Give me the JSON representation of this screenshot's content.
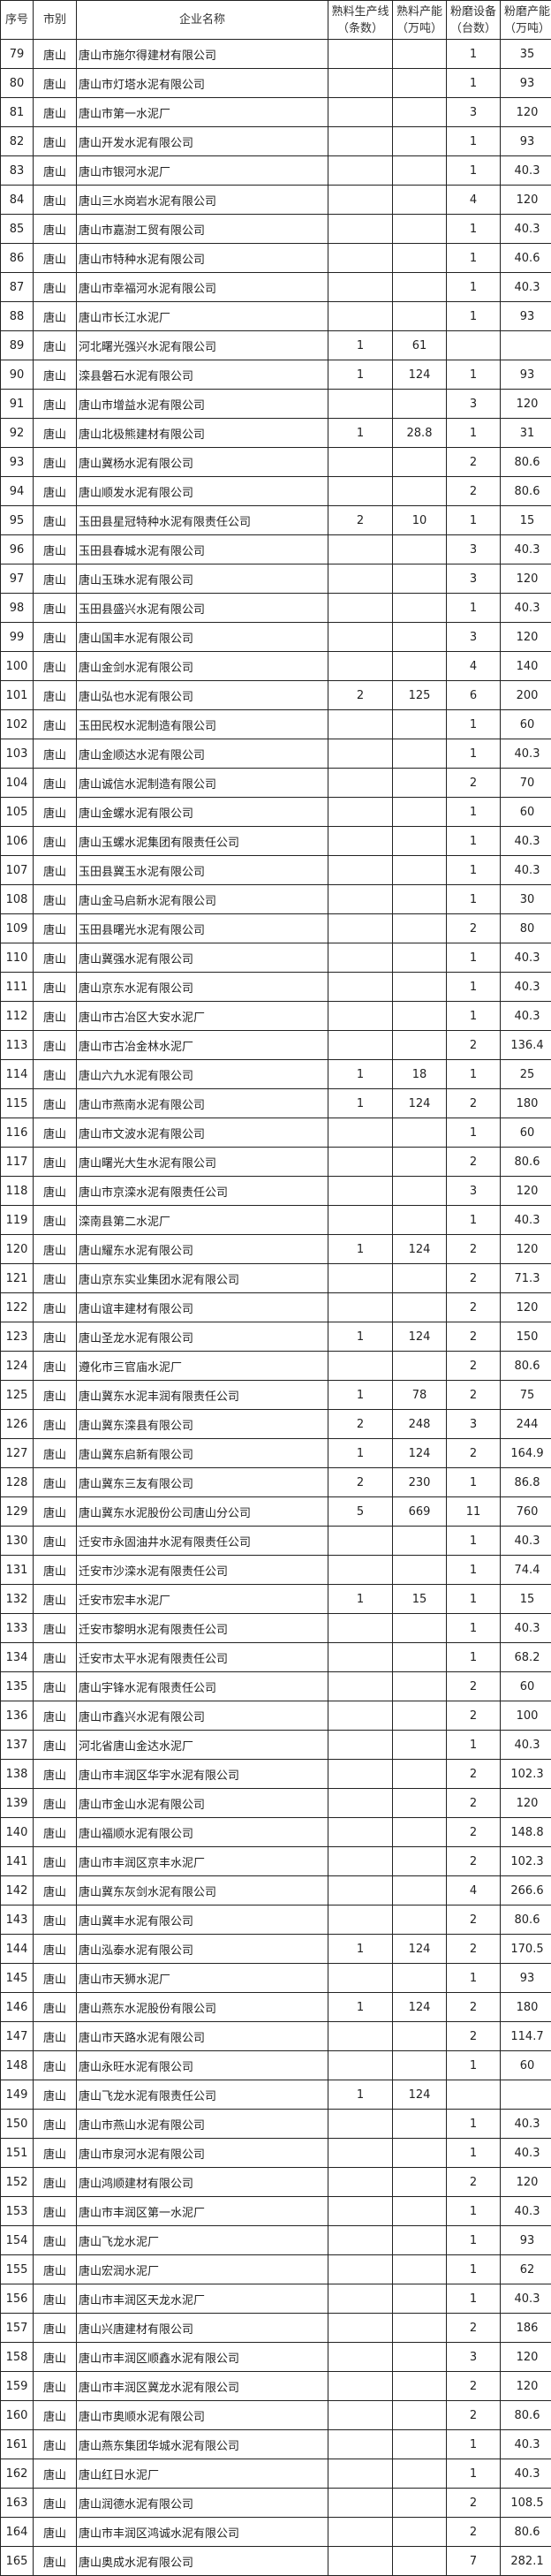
{
  "headers": {
    "no": "序号",
    "city": "市别",
    "company": "企业名称",
    "clinker_lines": [
      "熟料生产线",
      "（条数）"
    ],
    "clinker_capacity": [
      "熟料产能",
      "（万吨）"
    ],
    "mill_units": [
      "粉磨设备",
      "（台数）"
    ],
    "mill_capacity": [
      "粉磨产能",
      "（万吨）"
    ]
  },
  "rows": [
    [
      "79",
      "唐山",
      "唐山市施尔得建材有限公司",
      "",
      "",
      "1",
      "35"
    ],
    [
      "80",
      "唐山",
      "唐山市灯塔水泥有限公司",
      "",
      "",
      "1",
      "93"
    ],
    [
      "81",
      "唐山",
      "唐山市第一水泥厂",
      "",
      "",
      "3",
      "120"
    ],
    [
      "82",
      "唐山",
      "唐山开发水泥有限公司",
      "",
      "",
      "1",
      "93"
    ],
    [
      "83",
      "唐山",
      "唐山市银河水泥厂",
      "",
      "",
      "1",
      "40.3"
    ],
    [
      "84",
      "唐山",
      "唐山三水岗岩水泥有限公司",
      "",
      "",
      "4",
      "120"
    ],
    [
      "85",
      "唐山",
      "唐山市嘉澍工贸有限公司",
      "",
      "",
      "1",
      "40.3"
    ],
    [
      "86",
      "唐山",
      "唐山市特种水泥有限公司",
      "",
      "",
      "1",
      "40.6"
    ],
    [
      "87",
      "唐山",
      "唐山市幸福河水泥有限公司",
      "",
      "",
      "1",
      "40.3"
    ],
    [
      "88",
      "唐山",
      "唐山市长江水泥厂",
      "",
      "",
      "1",
      "93"
    ],
    [
      "89",
      "唐山",
      "河北曙光强兴水泥有限公司",
      "1",
      "61",
      "",
      ""
    ],
    [
      "90",
      "唐山",
      "滦县磐石水泥有限公司",
      "1",
      "124",
      "1",
      "93"
    ],
    [
      "91",
      "唐山",
      "唐山市增益水泥有限公司",
      "",
      "",
      "3",
      "120"
    ],
    [
      "92",
      "唐山",
      "唐山北极熊建材有限公司",
      "1",
      "28.8",
      "1",
      "31"
    ],
    [
      "93",
      "唐山",
      "唐山冀杨水泥有限公司",
      "",
      "",
      "2",
      "80.6"
    ],
    [
      "94",
      "唐山",
      "唐山顺发水泥有限公司",
      "",
      "",
      "2",
      "80.6"
    ],
    [
      "95",
      "唐山",
      "玉田县星冠特种水泥有限责任公司",
      "2",
      "10",
      "1",
      "15"
    ],
    [
      "96",
      "唐山",
      "玉田县春城水泥有限公司",
      "",
      "",
      "3",
      "40.3"
    ],
    [
      "97",
      "唐山",
      "唐山玉珠水泥有限公司",
      "",
      "",
      "3",
      "120"
    ],
    [
      "98",
      "唐山",
      "玉田县盛兴水泥有限公司",
      "",
      "",
      "1",
      "40.3"
    ],
    [
      "99",
      "唐山",
      "唐山国丰水泥有限公司",
      "",
      "",
      "3",
      "120"
    ],
    [
      "100",
      "唐山",
      "唐山金剑水泥有限公司",
      "",
      "",
      "4",
      "140"
    ],
    [
      "101",
      "唐山",
      "唐山弘也水泥有限公司",
      "2",
      "125",
      "6",
      "200"
    ],
    [
      "102",
      "唐山",
      "玉田民权水泥制造有限公司",
      "",
      "",
      "1",
      "60"
    ],
    [
      "103",
      "唐山",
      "唐山金顺达水泥有限公司",
      "",
      "",
      "1",
      "40.3"
    ],
    [
      "104",
      "唐山",
      "唐山诚信水泥制造有限公司",
      "",
      "",
      "2",
      "70"
    ],
    [
      "105",
      "唐山",
      "唐山金螺水泥有限公司",
      "",
      "",
      "1",
      "60"
    ],
    [
      "106",
      "唐山",
      "唐山玉螺水泥集团有限责任公司",
      "",
      "",
      "1",
      "40.3"
    ],
    [
      "107",
      "唐山",
      "玉田县冀玉水泥有限公司",
      "",
      "",
      "1",
      "40.3"
    ],
    [
      "108",
      "唐山",
      "唐山金马启新水泥有限公司",
      "",
      "",
      "1",
      "30"
    ],
    [
      "109",
      "唐山",
      "玉田县曙光水泥有限公司",
      "",
      "",
      "2",
      "80"
    ],
    [
      "110",
      "唐山",
      "唐山冀强水泥有限公司",
      "",
      "",
      "1",
      "40.3"
    ],
    [
      "111",
      "唐山",
      "唐山京东水泥有限公司",
      "",
      "",
      "1",
      "40.3"
    ],
    [
      "112",
      "唐山",
      "唐山市古冶区大安水泥厂",
      "",
      "",
      "1",
      "40.3"
    ],
    [
      "113",
      "唐山",
      "唐山市古冶金林水泥厂",
      "",
      "",
      "2",
      "136.4"
    ],
    [
      "114",
      "唐山",
      "唐山六九水泥有限公司",
      "1",
      "18",
      "1",
      "25"
    ],
    [
      "115",
      "唐山",
      "唐山市燕南水泥有限公司",
      "1",
      "124",
      "2",
      "180"
    ],
    [
      "116",
      "唐山",
      "唐山市文波水泥有限公司",
      "",
      "",
      "1",
      "60"
    ],
    [
      "117",
      "唐山",
      "唐山曙光大生水泥有限公司",
      "",
      "",
      "2",
      "80.6"
    ],
    [
      "118",
      "唐山",
      "唐山市京滦水泥有限责任公司",
      "",
      "",
      "3",
      "120"
    ],
    [
      "119",
      "唐山",
      "滦南县第二水泥厂",
      "",
      "",
      "1",
      "40.3"
    ],
    [
      "120",
      "唐山",
      "唐山耀东水泥有限公司",
      "1",
      "124",
      "2",
      "120"
    ],
    [
      "121",
      "唐山",
      "唐山京东实业集团水泥有限公司",
      "",
      "",
      "2",
      "71.3"
    ],
    [
      "122",
      "唐山",
      "唐山谊丰建材有限公司",
      "",
      "",
      "2",
      "120"
    ],
    [
      "123",
      "唐山",
      "唐山圣龙水泥有限公司",
      "1",
      "124",
      "2",
      "150"
    ],
    [
      "124",
      "唐山",
      "遵化市三官庙水泥厂",
      "",
      "",
      "2",
      "80.6"
    ],
    [
      "125",
      "唐山",
      "唐山冀东水泥丰润有限责任公司",
      "1",
      "78",
      "2",
      "75"
    ],
    [
      "126",
      "唐山",
      "唐山冀东滦县有限公司",
      "2",
      "248",
      "3",
      "244"
    ],
    [
      "127",
      "唐山",
      "唐山冀东启新有限公司",
      "1",
      "124",
      "2",
      "164.9"
    ],
    [
      "128",
      "唐山",
      "唐山冀东三友有限公司",
      "2",
      "230",
      "1",
      "86.8"
    ],
    [
      "129",
      "唐山",
      "唐山冀东水泥股份公司唐山分公司",
      "5",
      "669",
      "11",
      "760"
    ],
    [
      "130",
      "唐山",
      "迁安市永固油井水泥有限责任公司",
      "",
      "",
      "1",
      "40.3"
    ],
    [
      "131",
      "唐山",
      "迁安市沙滦水泥有限责任公司",
      "",
      "",
      "1",
      "74.4"
    ],
    [
      "132",
      "唐山",
      "迁安市宏丰水泥厂",
      "1",
      "15",
      "1",
      "15"
    ],
    [
      "133",
      "唐山",
      "迁安市黎明水泥有限责任公司",
      "",
      "",
      "1",
      "40.3"
    ],
    [
      "134",
      "唐山",
      "迁安市太平水泥有限责任公司",
      "",
      "",
      "1",
      "68.2"
    ],
    [
      "135",
      "唐山",
      "唐山宇锋水泥有限责任公司",
      "",
      "",
      "2",
      "60"
    ],
    [
      "136",
      "唐山",
      "唐山市鑫兴水泥有限公司",
      "",
      "",
      "2",
      "100"
    ],
    [
      "137",
      "唐山",
      "河北省唐山金达水泥厂",
      "",
      "",
      "1",
      "40.3"
    ],
    [
      "138",
      "唐山",
      "唐山市丰润区华宇水泥有限公司",
      "",
      "",
      "2",
      "102.3"
    ],
    [
      "139",
      "唐山",
      "唐山市金山水泥有限公司",
      "",
      "",
      "2",
      "120"
    ],
    [
      "140",
      "唐山",
      "唐山福顺水泥有限公司",
      "",
      "",
      "2",
      "148.8"
    ],
    [
      "141",
      "唐山",
      "唐山市丰润区京丰水泥厂",
      "",
      "",
      "2",
      "102.3"
    ],
    [
      "142",
      "唐山",
      "唐山冀东灰剑水泥有限公司",
      "",
      "",
      "4",
      "266.6"
    ],
    [
      "143",
      "唐山",
      "唐山冀丰水泥有限公司",
      "",
      "",
      "2",
      "80.6"
    ],
    [
      "144",
      "唐山",
      "唐山泓泰水泥有限公司",
      "1",
      "124",
      "2",
      "170.5"
    ],
    [
      "145",
      "唐山",
      "唐山市天狮水泥厂",
      "",
      "",
      "1",
      "93"
    ],
    [
      "146",
      "唐山",
      "唐山燕东水泥股份有限公司",
      "1",
      "124",
      "2",
      "180"
    ],
    [
      "147",
      "唐山",
      "唐山市天路水泥有限公司",
      "",
      "",
      "2",
      "114.7"
    ],
    [
      "148",
      "唐山",
      "唐山永旺水泥有限公司",
      "",
      "",
      "1",
      "60"
    ],
    [
      "149",
      "唐山",
      "唐山飞龙水泥有限责任公司",
      "1",
      "124",
      "",
      ""
    ],
    [
      "150",
      "唐山",
      "唐山市燕山水泥有限公司",
      "",
      "",
      "1",
      "40.3"
    ],
    [
      "151",
      "唐山",
      "唐山市泉河水泥有限公司",
      "",
      "",
      "1",
      "40.3"
    ],
    [
      "152",
      "唐山",
      "唐山鸿顺建材有限公司",
      "",
      "",
      "2",
      "120"
    ],
    [
      "153",
      "唐山",
      "唐山市丰润区第一水泥厂",
      "",
      "",
      "1",
      "40.3"
    ],
    [
      "154",
      "唐山",
      "唐山飞龙水泥厂",
      "",
      "",
      "1",
      "93"
    ],
    [
      "155",
      "唐山",
      "唐山宏润水泥厂",
      "",
      "",
      "1",
      "62"
    ],
    [
      "156",
      "唐山",
      "唐山市丰润区天龙水泥厂",
      "",
      "",
      "1",
      "40.3"
    ],
    [
      "157",
      "唐山",
      "唐山兴唐建材有限公司",
      "",
      "",
      "2",
      "186"
    ],
    [
      "158",
      "唐山",
      "唐山市丰润区顺鑫水泥有限公司",
      "",
      "",
      "3",
      "120"
    ],
    [
      "159",
      "唐山",
      "唐山市丰润区冀龙水泥有限公司",
      "",
      "",
      "2",
      "120"
    ],
    [
      "160",
      "唐山",
      "唐山市奥顺水泥有限公司",
      "",
      "",
      "2",
      "80.6"
    ],
    [
      "161",
      "唐山",
      "唐山燕东集团华城水泥有限公司",
      "",
      "",
      "1",
      "40.3"
    ],
    [
      "162",
      "唐山",
      "唐山红日水泥厂",
      "",
      "",
      "1",
      "40.3"
    ],
    [
      "163",
      "唐山",
      "唐山润德水泥有限公司",
      "",
      "",
      "2",
      "108.5"
    ],
    [
      "164",
      "唐山",
      "唐山市丰润区鸿诚水泥有限公司",
      "",
      "",
      "2",
      "80.6"
    ],
    [
      "165",
      "唐山",
      "唐山奥成水泥有限公司",
      "",
      "",
      "7",
      "282.1"
    ]
  ]
}
